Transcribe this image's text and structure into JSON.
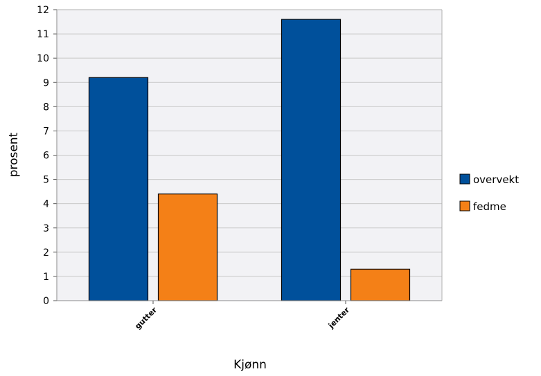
{
  "chart_data": {
    "type": "bar",
    "title": "",
    "xlabel": "Kjønn",
    "ylabel": "prosent",
    "categories": [
      "gutter",
      "jenter"
    ],
    "series": [
      {
        "name": "overvekt",
        "values": [
          9.2,
          11.6
        ],
        "color": "#00509b"
      },
      {
        "name": "fedme",
        "values": [
          4.4,
          1.3
        ],
        "color": "#f48017"
      }
    ],
    "ylim": [
      0,
      12
    ],
    "yticks": [
      "0",
      "1",
      "2",
      "3",
      "4",
      "5",
      "6",
      "7",
      "8",
      "9",
      "10",
      "11",
      "12"
    ],
    "grid": true,
    "legend": "right"
  }
}
